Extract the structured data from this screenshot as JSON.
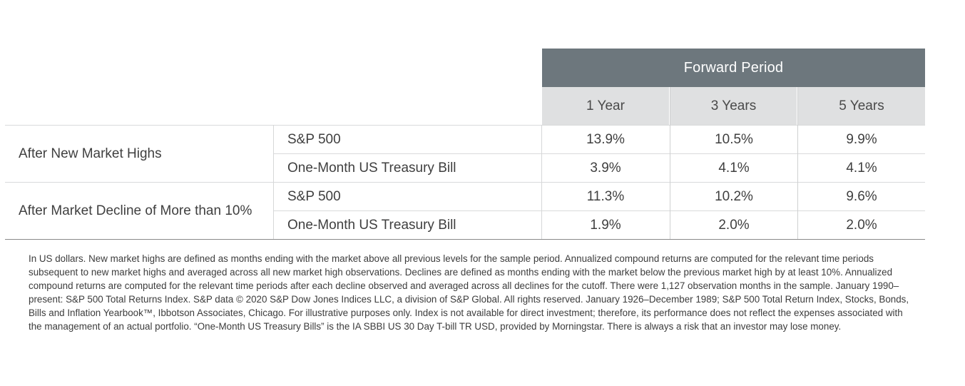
{
  "chart_data": {
    "type": "table",
    "header": {
      "group": "Forward Period",
      "columns": [
        "1 Year",
        "3 Years",
        "5 Years"
      ]
    },
    "groups": [
      {
        "label": "After New Market Highs",
        "rows": [
          {
            "label": "S&P 500",
            "values": [
              "13.9%",
              "10.5%",
              "9.9%"
            ]
          },
          {
            "label": "One-Month US Treasury Bill",
            "values": [
              "3.9%",
              "4.1%",
              "4.1%"
            ]
          }
        ]
      },
      {
        "label": "After Market Decline of More than 10%",
        "rows": [
          {
            "label": "S&P 500",
            "values": [
              "11.3%",
              "10.2%",
              "9.6%"
            ]
          },
          {
            "label": "One-Month US Treasury Bill",
            "values": [
              "1.9%",
              "2.0%",
              "2.0%"
            ]
          }
        ]
      }
    ]
  },
  "footnote": "In US dollars. New market highs are defined as months ending with the market above all previous levels for the sample period. Annualized compound returns are computed for the relevant time periods subsequent to new market highs and averaged across all new market high observations. Declines are defined as months ending with the market below the previous market high by at least 10%. Annualized compound returns are computed for the relevant time periods after each decline observed and averaged across all declines for the cutoff. There were 1,127 observation months in the sample. January 1990–present: S&P 500 Total Returns Index. S&P data © 2020 S&P Dow Jones Indices LLC, a division of S&P Global. All rights reserved. January 1926–December 1989; S&P 500 Total Return Index, Stocks, Bonds, Bills and Inflation Yearbook™, Ibbotson Associates, Chicago. For illustrative purposes only. Index is not available for direct investment; therefore, its performance does not reflect the expenses associated with the management of an actual portfolio. “One-Month US Treasury Bills” is the IA SBBI US 30 Day T-bill TR USD, provided by Morningstar. There is always a risk that an investor may lose money.",
  "colors": {
    "header_band": "#6d777d",
    "subheader_band": "#dfe0e1",
    "text": "#3f3f3f"
  }
}
